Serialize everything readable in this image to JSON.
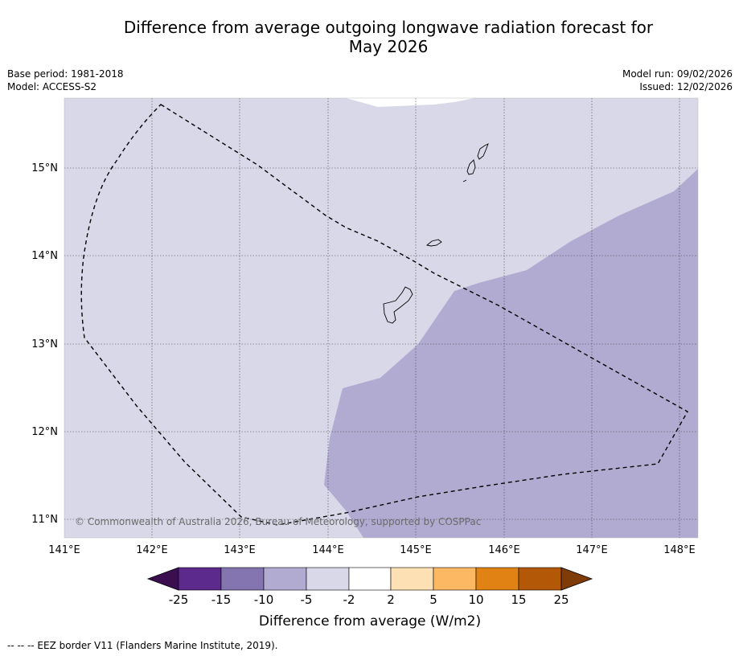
{
  "title_line1": "Difference from average outgoing longwave radiation forecast for",
  "title_line2": "May 2026",
  "meta": {
    "base_period": "Base period: 1981-2018",
    "model": "Model: ACCESS-S2",
    "model_run": "Model run: 09/02/2026",
    "issued": "Issued: 12/02/2026"
  },
  "copyright": "© Commonwealth of Australia 2026, Bureau of Meteorology, supported by COSPPac",
  "axes": {
    "lat_ticks": [
      "15°N",
      "14°N",
      "13°N",
      "12°N",
      "11°N"
    ],
    "lon_ticks": [
      "141°E",
      "142°E",
      "143°E",
      "144°E",
      "145°E",
      "146°E",
      "147°E",
      "148°E"
    ]
  },
  "colorbar": {
    "title": "Difference from average (W/m2)",
    "labels": [
      "-25",
      "-15",
      "-10",
      "-5",
      "-2",
      "2",
      "5",
      "10",
      "15",
      "25"
    ],
    "colors": {
      "min_arrow": "#3b0f4f",
      "bins": [
        "#5b2a8c",
        "#8474b0",
        "#b1aad1",
        "#d8d8e9",
        "#ffffff",
        "#fde0b3",
        "#fdb863",
        "#e08214",
        "#b35806"
      ],
      "max_arrow": "#7f3b08"
    }
  },
  "map_colors": {
    "light_region": "#d8d8e9",
    "mid_region": "#b1aad1"
  },
  "footer": "--  --  -- EEZ border V11 (Flanders Marine Institute, 2019)."
}
